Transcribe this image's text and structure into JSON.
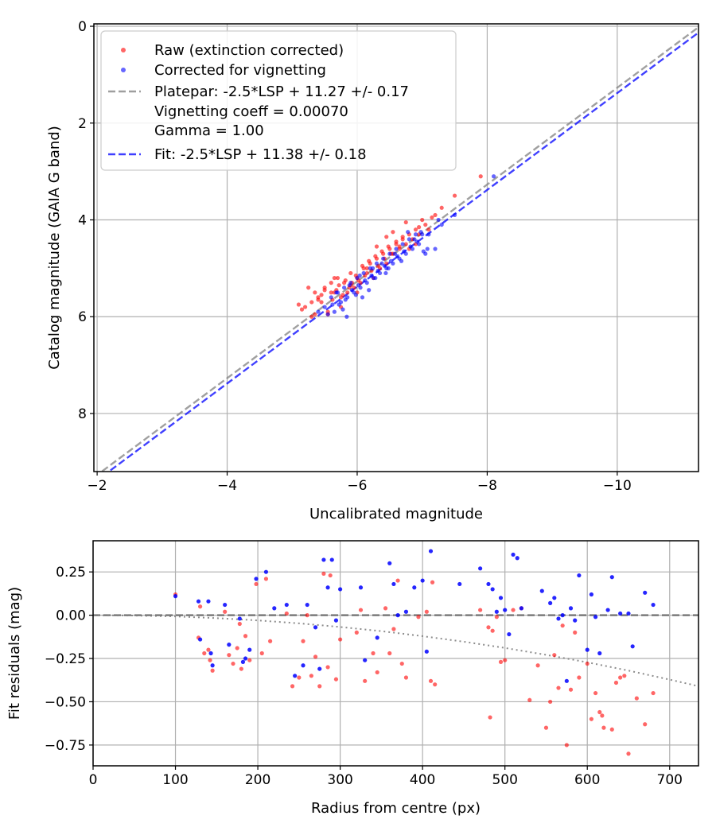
{
  "chart_data": [
    {
      "type": "scatter",
      "xlabel": "Uncalibrated magnitude",
      "ylabel": "Catalog magnitude (GAIA G band)",
      "xlim": [
        -1.95,
        -11.25
      ],
      "ylim": [
        -0.05,
        9.2
      ],
      "x_ticks": [
        -2,
        -4,
        -6,
        -8,
        -10
      ],
      "y_ticks": [
        0,
        2,
        4,
        6,
        8
      ],
      "grid": true,
      "legend_position": "upper-left",
      "legend": [
        {
          "label": "Raw (extinction corrected)",
          "kind": "marker",
          "color": "#ff0000"
        },
        {
          "label": "Corrected for vignetting",
          "kind": "marker",
          "color": "#0000ff"
        },
        {
          "label": "Platepar: -2.5*LSP + 11.27 +/- 0.17",
          "kind": "dashed",
          "color": "#808080"
        },
        {
          "label": "Vignetting coeff = 0.00070",
          "kind": "none",
          "color": "#808080"
        },
        {
          "label": "Gamma = 1.00",
          "kind": "none",
          "color": "#808080"
        },
        {
          "label": "Fit: -2.5*LSP + 11.38 +/- 0.18",
          "kind": "dashed",
          "color": "#0000ff"
        }
      ],
      "series": [
        {
          "name": "Platepar fit line",
          "color": "#808080",
          "style": "dashed",
          "x": [
            -1.95,
            -11.25
          ],
          "y": [
            9.32,
            0.02
          ]
        },
        {
          "name": "Fit line",
          "color": "#0000ff",
          "style": "dashed",
          "x": [
            -1.95,
            -11.25
          ],
          "y": [
            9.43,
            0.13
          ]
        },
        {
          "name": "Raw (extinction corrected)",
          "color": "#ff0000",
          "x": [
            -5.2,
            -5.25,
            -5.3,
            -5.35,
            -5.4,
            -5.45,
            -5.5,
            -5.55,
            -5.6,
            -5.65,
            -5.7,
            -5.75,
            -5.8,
            -5.85,
            -5.9,
            -5.95,
            -6.0,
            -6.05,
            -6.1,
            -6.15,
            -6.2,
            -6.25,
            -6.3,
            -6.35,
            -6.4,
            -6.45,
            -6.5,
            -6.55,
            -6.6,
            -6.65,
            -6.7,
            -6.75,
            -6.8,
            -6.85,
            -6.9,
            -6.95,
            -7.0,
            -7.1,
            -7.2,
            -7.5,
            -7.9,
            -5.1,
            -5.15,
            -5.3,
            -5.4,
            -5.5,
            -5.55,
            -5.6,
            -5.62,
            -5.68,
            -5.72,
            -5.78,
            -5.82,
            -5.88,
            -5.92,
            -5.98,
            -6.02,
            -6.08,
            -6.12,
            -6.18,
            -6.22,
            -6.28,
            -6.32,
            -6.38,
            -6.42,
            -6.48,
            -6.52,
            -6.6,
            -6.7,
            -6.8,
            -6.9,
            -7.05,
            -5.35,
            -5.45,
            -5.65,
            -5.75,
            -5.9,
            -6.0,
            -6.15,
            -6.3,
            -6.45,
            -6.55,
            -6.65,
            -6.75,
            -6.95,
            -7.15,
            -7.3
          ],
          "y": [
            5.8,
            5.4,
            5.7,
            5.5,
            5.6,
            5.55,
            5.4,
            5.9,
            5.3,
            5.5,
            5.2,
            5.6,
            5.3,
            5.5,
            5.1,
            5.4,
            5.2,
            5.3,
            5.0,
            5.1,
            4.9,
            5.2,
            4.8,
            5.0,
            4.7,
            4.9,
            4.6,
            4.7,
            4.5,
            4.6,
            4.4,
            4.5,
            4.3,
            4.4,
            4.2,
            4.3,
            4.0,
            4.2,
            3.9,
            3.5,
            3.1,
            5.75,
            5.85,
            6.0,
            5.65,
            5.45,
            5.95,
            5.5,
            5.65,
            5.45,
            5.35,
            5.55,
            5.25,
            5.4,
            5.3,
            5.15,
            5.25,
            4.95,
            5.15,
            4.85,
            5.05,
            4.75,
            4.95,
            4.65,
            4.8,
            4.55,
            4.7,
            4.45,
            4.35,
            4.6,
            4.5,
            4.1,
            5.95,
            5.7,
            5.2,
            5.8,
            5.35,
            5.5,
            5.0,
            4.55,
            4.35,
            4.25,
            4.55,
            4.05,
            4.15,
            3.95,
            3.75
          ]
        },
        {
          "name": "Corrected for vignetting",
          "color": "#0000ff",
          "x": [
            -5.4,
            -5.5,
            -5.6,
            -5.65,
            -5.7,
            -5.75,
            -5.8,
            -5.85,
            -5.9,
            -5.95,
            -6.0,
            -6.05,
            -6.1,
            -6.15,
            -6.2,
            -6.25,
            -6.3,
            -6.35,
            -6.4,
            -6.45,
            -6.5,
            -6.55,
            -6.6,
            -6.65,
            -6.7,
            -6.75,
            -6.8,
            -6.85,
            -6.9,
            -6.95,
            -7.0,
            -7.05,
            -7.1,
            -7.2,
            -7.3,
            -7.5,
            -8.1,
            -5.55,
            -5.72,
            -5.82,
            -5.92,
            -6.02,
            -6.12,
            -6.22,
            -6.32,
            -6.42,
            -6.52,
            -6.62,
            -6.72,
            -6.82,
            -6.92,
            -7.02,
            -5.68,
            -5.88,
            -6.08,
            -6.28,
            -6.48,
            -6.68,
            -6.88,
            -7.08,
            -5.78,
            -5.98,
            -6.18,
            -6.38,
            -6.58,
            -6.78,
            -6.98,
            -7.25,
            -5.62,
            -5.84,
            -6.04,
            -6.24,
            -6.44
          ],
          "y": [
            5.9,
            5.8,
            5.6,
            5.9,
            5.5,
            5.7,
            5.4,
            5.6,
            5.3,
            5.5,
            5.2,
            5.4,
            5.1,
            5.3,
            5.0,
            5.2,
            4.9,
            5.1,
            4.8,
            5.0,
            4.7,
            4.9,
            4.6,
            4.8,
            4.5,
            4.7,
            4.4,
            4.6,
            4.3,
            4.5,
            4.3,
            4.7,
            4.3,
            4.6,
            4.1,
            3.9,
            3.1,
            5.95,
            5.75,
            5.65,
            5.45,
            5.35,
            5.25,
            5.15,
            5.05,
            4.95,
            4.85,
            4.75,
            4.65,
            4.55,
            4.45,
            4.65,
            5.5,
            5.35,
            5.6,
            5.2,
            5.0,
            4.85,
            4.4,
            4.6,
            5.85,
            5.55,
            5.45,
            4.9,
            4.7,
            4.25,
            4.25,
            4.0,
            5.75,
            6.0,
            5.15,
            5.0,
            5.1
          ]
        }
      ]
    },
    {
      "type": "scatter",
      "xlabel": "Radius from centre (px)",
      "ylabel": "Fit residuals (mag)",
      "xlim": [
        0,
        735
      ],
      "ylim": [
        -0.87,
        0.43
      ],
      "x_ticks": [
        0,
        100,
        200,
        300,
        400,
        500,
        600,
        700
      ],
      "y_ticks": [
        0.25,
        0.0,
        -0.25,
        -0.5,
        -0.75
      ],
      "y_tick_labels": [
        "0.25",
        "0.00",
        "−0.25",
        "−0.50",
        "−0.75"
      ],
      "grid": true,
      "series": [
        {
          "name": "Zero line",
          "color": "#555555",
          "style": "dashed",
          "x": [
            0,
            735
          ],
          "y": [
            0.0,
            0.0
          ]
        },
        {
          "name": "Vignetting model",
          "color": "#808080",
          "style": "dotted",
          "x": [
            0,
            50,
            100,
            150,
            200,
            250,
            300,
            350,
            400,
            450,
            500,
            550,
            600,
            650,
            700,
            735
          ],
          "y": [
            0.0,
            -0.002,
            -0.007,
            -0.017,
            -0.03,
            -0.047,
            -0.068,
            -0.092,
            -0.121,
            -0.153,
            -0.189,
            -0.229,
            -0.272,
            -0.32,
            -0.372,
            -0.41
          ]
        },
        {
          "name": "Raw residuals",
          "color": "#ff0000",
          "x": [
            100,
            128,
            130,
            135,
            140,
            142,
            145,
            160,
            165,
            170,
            175,
            178,
            180,
            185,
            190,
            198,
            205,
            210,
            215,
            235,
            242,
            250,
            255,
            260,
            265,
            270,
            275,
            280,
            285,
            288,
            295,
            300,
            320,
            325,
            330,
            340,
            345,
            355,
            360,
            365,
            370,
            375,
            380,
            395,
            405,
            410,
            412,
            415,
            470,
            480,
            482,
            485,
            490,
            495,
            500,
            510,
            520,
            530,
            540,
            550,
            555,
            560,
            565,
            570,
            575,
            580,
            585,
            590,
            600,
            605,
            610,
            615,
            618,
            620,
            630,
            635,
            640,
            645,
            650,
            660,
            670,
            680
          ],
          "y": [
            0.12,
            -0.13,
            0.05,
            -0.22,
            -0.2,
            -0.26,
            -0.32,
            0.02,
            -0.23,
            -0.28,
            -0.19,
            -0.05,
            -0.31,
            -0.12,
            -0.26,
            0.18,
            -0.22,
            0.21,
            -0.15,
            0.01,
            -0.41,
            -0.36,
            -0.15,
            0.0,
            -0.35,
            -0.24,
            -0.41,
            0.24,
            -0.3,
            0.23,
            -0.37,
            -0.14,
            -0.1,
            0.03,
            -0.38,
            -0.22,
            -0.33,
            0.04,
            -0.22,
            -0.08,
            0.2,
            -0.28,
            -0.36,
            -0.01,
            0.02,
            -0.38,
            0.19,
            -0.4,
            0.03,
            -0.07,
            -0.59,
            -0.09,
            -0.01,
            -0.27,
            -0.26,
            0.03,
            0.04,
            -0.49,
            -0.29,
            -0.65,
            -0.5,
            -0.23,
            -0.42,
            -0.06,
            -0.75,
            -0.43,
            -0.1,
            -0.36,
            -0.28,
            -0.6,
            -0.45,
            -0.56,
            -0.58,
            -0.65,
            -0.66,
            -0.39,
            -0.36,
            -0.35,
            -0.8,
            -0.48,
            -0.63,
            -0.45
          ],
          "note": "approximate"
        },
        {
          "name": "Corrected residuals",
          "color": "#0000ff",
          "x": [
            100,
            128,
            130,
            140,
            143,
            145,
            160,
            165,
            178,
            182,
            185,
            190,
            198,
            210,
            220,
            235,
            245,
            255,
            260,
            270,
            275,
            280,
            285,
            290,
            295,
            300,
            325,
            330,
            345,
            360,
            365,
            370,
            380,
            390,
            400,
            405,
            410,
            445,
            470,
            480,
            485,
            490,
            495,
            500,
            505,
            510,
            515,
            520,
            545,
            555,
            560,
            565,
            570,
            575,
            580,
            585,
            590,
            600,
            605,
            610,
            615,
            625,
            630,
            640,
            650,
            655,
            670,
            680
          ],
          "y": [
            0.11,
            0.08,
            -0.14,
            0.08,
            -0.22,
            -0.29,
            0.06,
            -0.17,
            -0.02,
            -0.27,
            -0.25,
            -0.2,
            0.21,
            0.25,
            0.04,
            0.06,
            -0.35,
            -0.29,
            0.06,
            -0.07,
            -0.31,
            0.32,
            0.16,
            0.32,
            -0.03,
            0.15,
            0.16,
            -0.26,
            -0.13,
            0.3,
            0.18,
            0.0,
            0.02,
            0.16,
            0.2,
            -0.21,
            0.37,
            0.18,
            0.27,
            0.18,
            0.15,
            0.02,
            0.1,
            0.03,
            -0.11,
            0.35,
            0.33,
            0.04,
            0.14,
            0.07,
            0.1,
            -0.02,
            0.0,
            -0.38,
            0.04,
            -0.03,
            0.23,
            -0.2,
            0.12,
            -0.01,
            -0.22,
            0.03,
            0.22,
            0.01,
            0.01,
            -0.18,
            0.13,
            0.06
          ],
          "note": "approximate"
        }
      ]
    }
  ]
}
